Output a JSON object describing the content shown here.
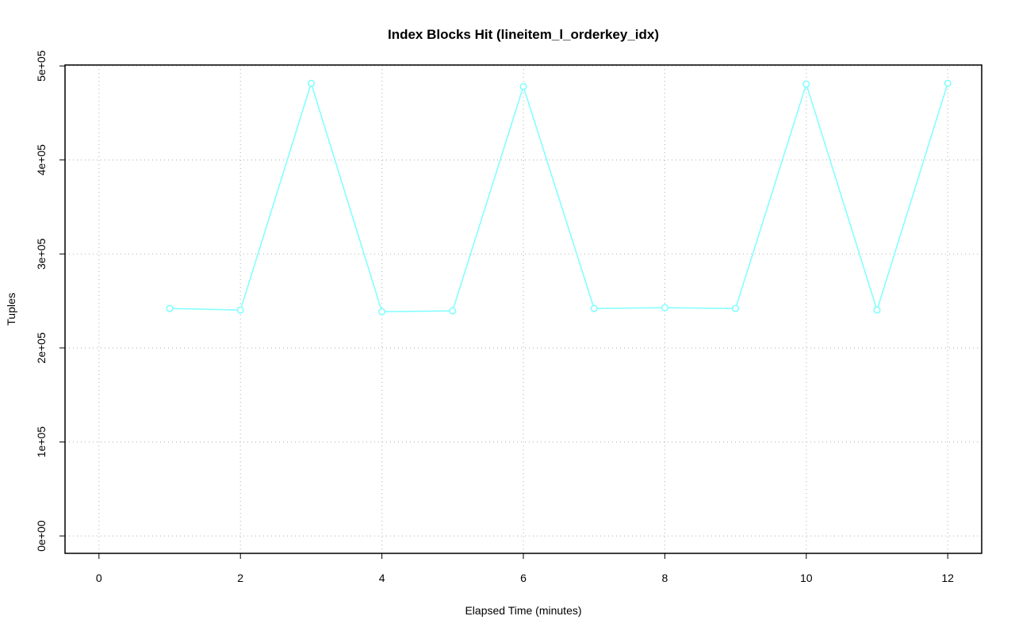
{
  "chart_data": {
    "type": "line",
    "title": "Index Blocks Hit (lineitem_l_orderkey_idx)",
    "x_label": "Elapsed Time (minutes)",
    "y_label": "Tuples",
    "x": [
      1,
      2,
      3,
      4,
      5,
      6,
      7,
      8,
      9,
      10,
      11,
      12
    ],
    "series": [
      {
        "color": "#7fffff",
        "values": [
          242000,
          240300,
          481500,
          238600,
          239500,
          478100,
          242000,
          242800,
          242000,
          480600,
          240300,
          481500
        ]
      }
    ],
    "xlim": [
      -0.48,
      12.48
    ],
    "xticks": [
      0,
      2,
      4,
      6,
      8,
      10,
      12
    ],
    "ylim": [
      -18500,
      501000
    ],
    "yticks": [
      {
        "value": 0,
        "label": "0e+00"
      },
      {
        "value": 100000,
        "label": "1e+05"
      },
      {
        "value": 200000,
        "label": "2e+05"
      },
      {
        "value": 300000,
        "label": "3e+05"
      },
      {
        "value": 400000,
        "label": "4e+05"
      },
      {
        "value": 500000,
        "label": "5e+05"
      }
    ],
    "grid": true
  }
}
